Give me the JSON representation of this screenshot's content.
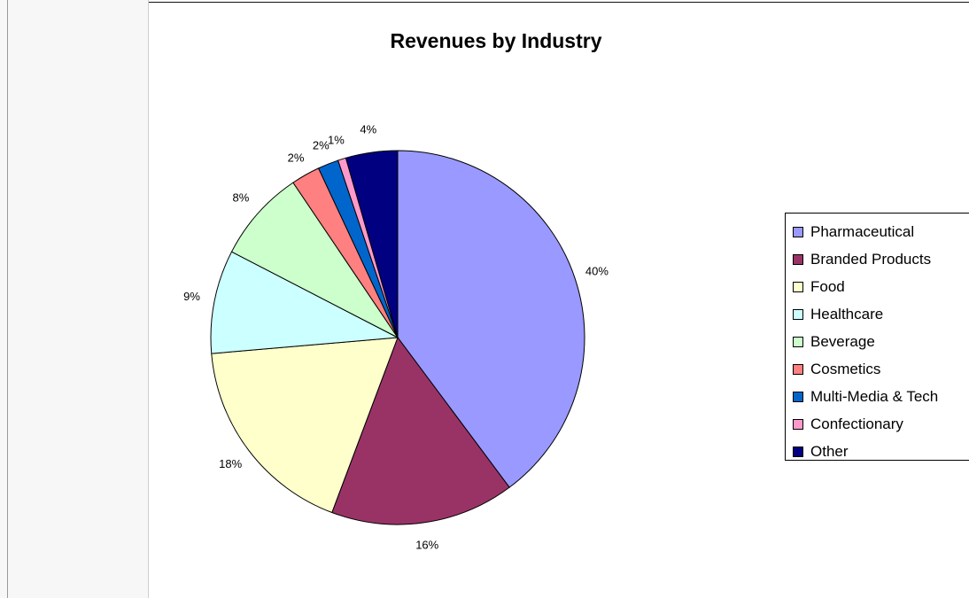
{
  "chart_data": {
    "type": "pie",
    "title": "Revenues by Industry",
    "legend_position": "right",
    "slices": [
      {
        "name": "Pharmaceutical",
        "value": 40,
        "label": "40%",
        "color": "#9999FF"
      },
      {
        "name": "Branded Products",
        "value": 16,
        "label": "16%",
        "color": "#993366"
      },
      {
        "name": "Food",
        "value": 18,
        "label": "18%",
        "color": "#FFFFCC"
      },
      {
        "name": "Healthcare",
        "value": 9,
        "label": "9%",
        "color": "#CCFFFF"
      },
      {
        "name": "Beverage",
        "value": 8,
        "label": "8%",
        "color": "#CCFFCC"
      },
      {
        "name": "Cosmetics",
        "value": 2.5,
        "label": "2%",
        "color": "#FF8080"
      },
      {
        "name": "Multi-Media & Tech",
        "value": 1.8,
        "label": "2%",
        "color": "#0066CC"
      },
      {
        "name": "Confectionary",
        "value": 0.7,
        "label": "1%",
        "color": "#FF99CC"
      },
      {
        "name": "Other",
        "value": 4.5,
        "label": "4%",
        "color": "#000080"
      }
    ]
  }
}
